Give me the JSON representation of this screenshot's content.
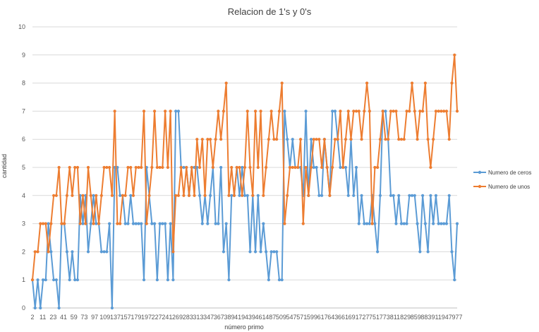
{
  "chart_data": {
    "type": "line",
    "title": "Relacion de  1's y 0's",
    "xlabel": "número primo",
    "ylabel": "cantidad",
    "ylim": [
      0,
      10
    ],
    "ytick_step": 1,
    "grid": true,
    "legend_position": "right",
    "x_tick_labels": [
      "2",
      "11",
      "23",
      "41",
      "59",
      "73",
      "97",
      "109",
      "137",
      "157",
      "179",
      "197",
      "227",
      "241",
      "269",
      "283",
      "313",
      "347",
      "367",
      "389",
      "419",
      "439",
      "461",
      "487",
      "509",
      "547",
      "571",
      "599",
      "617",
      "643",
      "661",
      "691",
      "727",
      "751",
      "773",
      "811",
      "829",
      "859",
      "883",
      "911",
      "947",
      "977"
    ],
    "series": [
      {
        "name": "Numero de ceros",
        "color": "#5B9BD5",
        "values": [
          1,
          0,
          1,
          0,
          1,
          1,
          3,
          2,
          1,
          1,
          0,
          3,
          3,
          2,
          1,
          2,
          1,
          1,
          4,
          3,
          4,
          2,
          3,
          4,
          3,
          3,
          2,
          2,
          2,
          3,
          0,
          5,
          5,
          4,
          4,
          3,
          3,
          4,
          3,
          3,
          3,
          3,
          1,
          5,
          4,
          3,
          3,
          1,
          3,
          3,
          3,
          1,
          3,
          1,
          7,
          7,
          5,
          5,
          5,
          4,
          5,
          5,
          5,
          4,
          3,
          4,
          3,
          4,
          5,
          3,
          3,
          5,
          2,
          3,
          1,
          4,
          4,
          5,
          4,
          5,
          4,
          4,
          2,
          4,
          2,
          4,
          2,
          3,
          2,
          1,
          2,
          2,
          2,
          1,
          1,
          7,
          6,
          5,
          6,
          5,
          5,
          5,
          4,
          7,
          4,
          6,
          5,
          5,
          4,
          4,
          6,
          5,
          4,
          7,
          7,
          6,
          5,
          5,
          5,
          4,
          6,
          4,
          5,
          3,
          4,
          3,
          3,
          3,
          4,
          3,
          2,
          4,
          7,
          7,
          6,
          4,
          4,
          3,
          4,
          3,
          3,
          3,
          4,
          4,
          4,
          3,
          2,
          4,
          3,
          2,
          4,
          3,
          4,
          3,
          3,
          3,
          3,
          4,
          2,
          1,
          3
        ]
      },
      {
        "name": "Numero de unos",
        "color": "#ED7D31",
        "values": [
          1,
          2,
          2,
          3,
          3,
          3,
          2,
          3,
          4,
          4,
          5,
          3,
          3,
          4,
          5,
          4,
          5,
          5,
          3,
          4,
          3,
          5,
          4,
          3,
          4,
          3,
          4,
          5,
          5,
          5,
          4,
          7,
          3,
          3,
          4,
          4,
          5,
          5,
          4,
          5,
          5,
          5,
          7,
          3,
          4,
          5,
          7,
          5,
          5,
          5,
          7,
          5,
          7,
          2,
          4,
          4,
          5,
          4,
          5,
          4,
          5,
          4,
          6,
          5,
          6,
          4,
          6,
          6,
          5,
          6,
          7,
          6,
          7,
          8,
          4,
          5,
          4,
          5,
          5,
          4,
          5,
          7,
          5,
          4,
          7,
          5,
          7,
          4,
          5,
          6,
          7,
          6,
          6,
          7,
          8,
          3,
          4,
          5,
          5,
          5,
          5,
          6,
          3,
          5,
          4,
          5,
          6,
          6,
          6,
          5,
          6,
          5,
          4,
          5,
          6,
          6,
          7,
          5,
          6,
          7,
          6,
          7,
          7,
          7,
          6,
          7,
          8,
          7,
          3,
          5,
          5,
          6,
          7,
          6,
          6,
          7,
          7,
          7,
          6,
          6,
          6,
          7,
          7,
          8,
          7,
          6,
          7,
          7,
          8,
          6,
          5,
          6,
          7,
          7,
          7,
          7,
          7,
          6,
          8,
          9,
          7
        ]
      }
    ]
  }
}
